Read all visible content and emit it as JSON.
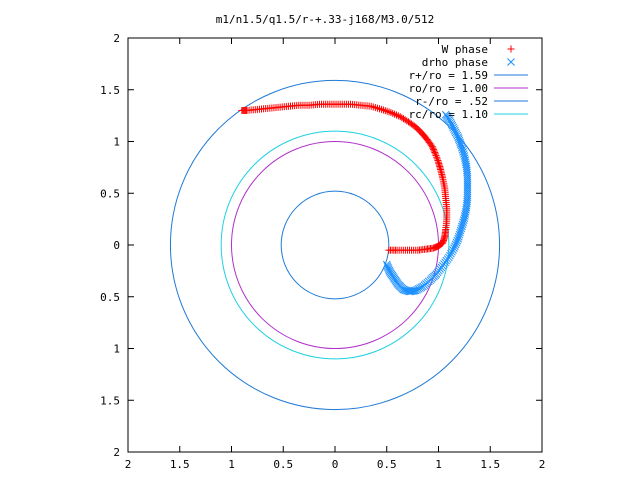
{
  "chart_data": {
    "type": "scatter",
    "title": "m1/n1.5/q1.5/r-+.33-j168/M3.0/512",
    "xlabel": "",
    "ylabel": "",
    "xlim": [
      -2,
      2
    ],
    "ylim": [
      -2,
      2
    ],
    "x_tick_labels": [
      "2",
      "1.5",
      "1",
      "0.5",
      "0",
      "0.5",
      "1",
      "1.5",
      "2"
    ],
    "y_tick_labels": [
      "2",
      "1.5",
      "1",
      "0.5",
      "0",
      "0.5",
      "1",
      "1.5",
      "2"
    ],
    "grid": false,
    "legend_position": "top-right",
    "series": [
      {
        "name": "W phase",
        "marker": "+",
        "color": "#ff0000",
        "points": [
          [
            0.52,
            -0.05
          ],
          [
            0.6,
            -0.05
          ],
          [
            0.7,
            -0.05
          ],
          [
            0.8,
            -0.05
          ],
          [
            0.88,
            -0.04
          ],
          [
            0.95,
            -0.03
          ],
          [
            1.0,
            -0.01
          ],
          [
            1.04,
            0.02
          ],
          [
            1.06,
            0.08
          ],
          [
            1.07,
            0.15
          ],
          [
            1.08,
            0.25
          ],
          [
            1.08,
            0.35
          ],
          [
            1.07,
            0.45
          ],
          [
            1.06,
            0.55
          ],
          [
            1.04,
            0.65
          ],
          [
            1.02,
            0.73
          ],
          [
            1.0,
            0.8
          ],
          [
            0.97,
            0.88
          ],
          [
            0.94,
            0.95
          ],
          [
            0.89,
            1.02
          ],
          [
            0.84,
            1.08
          ],
          [
            0.78,
            1.14
          ],
          [
            0.71,
            1.19
          ],
          [
            0.63,
            1.24
          ],
          [
            0.54,
            1.28
          ],
          [
            0.45,
            1.31
          ],
          [
            0.35,
            1.34
          ],
          [
            0.25,
            1.35
          ],
          [
            0.15,
            1.36
          ],
          [
            0.05,
            1.36
          ],
          [
            -0.05,
            1.36
          ],
          [
            -0.15,
            1.36
          ],
          [
            -0.25,
            1.35
          ],
          [
            -0.35,
            1.35
          ],
          [
            -0.45,
            1.34
          ],
          [
            -0.55,
            1.33
          ],
          [
            -0.65,
            1.32
          ],
          [
            -0.75,
            1.31
          ],
          [
            -0.85,
            1.3
          ],
          [
            -0.9,
            1.3
          ]
        ]
      },
      {
        "name": "drho phase",
        "marker": "x",
        "color": "#1e90ff",
        "points": [
          [
            1.07,
            1.26
          ],
          [
            1.11,
            1.2
          ],
          [
            1.15,
            1.12
          ],
          [
            1.19,
            1.04
          ],
          [
            1.22,
            0.96
          ],
          [
            1.25,
            0.86
          ],
          [
            1.27,
            0.76
          ],
          [
            1.28,
            0.66
          ],
          [
            1.28,
            0.56
          ],
          [
            1.28,
            0.46
          ],
          [
            1.27,
            0.36
          ],
          [
            1.25,
            0.26
          ],
          [
            1.22,
            0.16
          ],
          [
            1.19,
            0.06
          ],
          [
            1.15,
            -0.03
          ],
          [
            1.1,
            -0.12
          ],
          [
            1.04,
            -0.2
          ],
          [
            0.98,
            -0.28
          ],
          [
            0.92,
            -0.34
          ],
          [
            0.85,
            -0.4
          ],
          [
            0.78,
            -0.44
          ],
          [
            0.72,
            -0.45
          ],
          [
            0.66,
            -0.43
          ],
          [
            0.61,
            -0.38
          ],
          [
            0.57,
            -0.32
          ],
          [
            0.53,
            -0.26
          ],
          [
            0.5,
            -0.19
          ]
        ]
      }
    ],
    "circles": [
      {
        "name": "r+/ro = 1.59",
        "radius": 1.59,
        "color": "#1f7ad6"
      },
      {
        "name": "ro/ro = 1.00",
        "radius": 1.0,
        "color": "#b030c8"
      },
      {
        "name": "r-/ro =  .52",
        "radius": 0.52,
        "color": "#1f7ad6"
      },
      {
        "name": "rc/ro = 1.10",
        "radius": 1.1,
        "color": "#20d0e0"
      }
    ]
  }
}
